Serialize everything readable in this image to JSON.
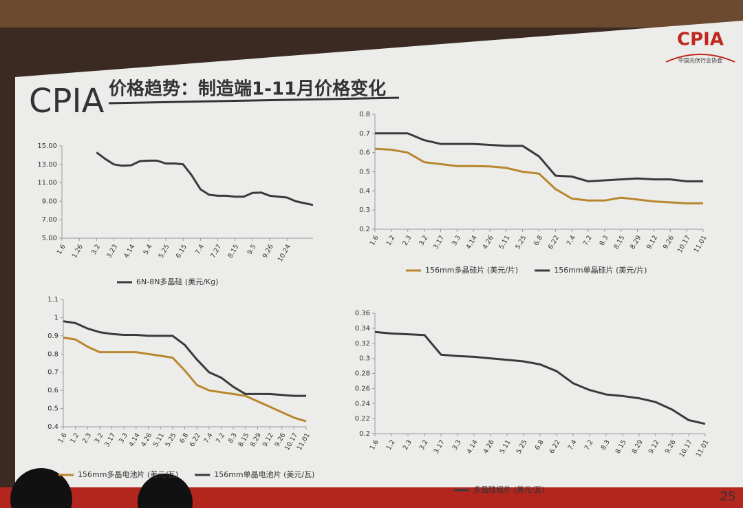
{
  "header": {
    "logo": "CPIA",
    "org": "中国光伏行业协会",
    "brand": "CPIA",
    "title": "价格趋势：制造端1-11月价格变化",
    "page": "25"
  },
  "chart_data": [
    {
      "type": "line",
      "categories": [
        "1.6",
        null,
        "1.26",
        null,
        "3.2",
        null,
        "3.23",
        null,
        "4.14",
        null,
        "5.4",
        null,
        "5.25",
        null,
        "6.15",
        null,
        "7.4",
        null,
        "7.27",
        null,
        "8.15",
        null,
        "9.5",
        null,
        "9.26",
        null,
        "10.24",
        null,
        null,
        null
      ],
      "series": [
        {
          "name": "6N-8N多晶硅 (美元/Kg)",
          "color": "#3a3a3a",
          "values": [
            null,
            null,
            null,
            null,
            14.3,
            13.6,
            13.0,
            12.85,
            12.9,
            13.35,
            13.4,
            13.4,
            13.1,
            13.1,
            13.0,
            11.8,
            10.3,
            9.7,
            9.6,
            9.6,
            9.5,
            9.5,
            9.9,
            9.95,
            9.6,
            9.5,
            9.4,
            9.0,
            8.8,
            8.6
          ]
        }
      ],
      "ylim": [
        5,
        15
      ],
      "yticks": [
        {
          "value": 5,
          "label": "5.00"
        },
        {
          "value": 7,
          "label": "7.00"
        },
        {
          "value": 9,
          "label": "9.00"
        },
        {
          "value": 11,
          "label": "11.00"
        },
        {
          "value": 13,
          "label": "13.00"
        },
        {
          "value": 15,
          "label": "15.00"
        }
      ]
    },
    {
      "type": "line",
      "categories": [
        "1.6",
        "1.2",
        "2.3",
        "3.2",
        "3.17",
        "3.3",
        "4.14",
        "4.26",
        "5.11",
        "5.25",
        "6.8",
        "6.22",
        "7.4",
        "7.2",
        "8.3",
        "8.15",
        "8.29",
        "9.12",
        "9.26",
        "10.17",
        "11.01"
      ],
      "series": [
        {
          "name": "156mm多晶硅片 (美元/片)",
          "color": "#b8862e",
          "values": [
            0.62,
            0.615,
            0.6,
            0.55,
            0.54,
            0.53,
            0.53,
            0.528,
            0.52,
            0.5,
            0.49,
            0.41,
            0.36,
            0.35,
            0.35,
            0.365,
            0.355,
            0.345,
            0.34,
            0.335,
            0.335
          ]
        },
        {
          "name": "156mm单晶硅片 (美元/片)",
          "color": "#3a3a3a",
          "values": [
            0.7,
            0.7,
            0.7,
            0.665,
            0.645,
            0.645,
            0.645,
            0.64,
            0.635,
            0.635,
            0.58,
            0.48,
            0.475,
            0.45,
            0.455,
            0.46,
            0.465,
            0.46,
            0.46,
            0.45,
            0.45
          ]
        }
      ],
      "ylim": [
        0.2,
        0.8
      ],
      "yticks": [
        0.2,
        0.3,
        0.4,
        0.5,
        0.6,
        0.7,
        0.8
      ]
    },
    {
      "type": "line",
      "categories": [
        "1.6",
        "1.2",
        "2.3",
        "3.2",
        "3.17",
        "3.3",
        "4.14",
        "4.26",
        "5.11",
        "5.25",
        "6.8",
        "6.22",
        "7.4",
        "7.2",
        "8.3",
        "8.15",
        "8.29",
        "9.12",
        "9.26",
        "10.17",
        "11.01"
      ],
      "series": [
        {
          "name": "156mm多晶电池片 (美元/瓦)",
          "color": "#b8862e",
          "values": [
            0.89,
            0.88,
            0.84,
            0.81,
            0.81,
            0.81,
            0.81,
            0.8,
            0.79,
            0.78,
            0.71,
            0.63,
            0.6,
            0.59,
            0.58,
            0.57,
            0.54,
            0.51,
            0.48,
            0.45,
            0.43
          ]
        },
        {
          "name": "156mm单晶电池片 (美元/瓦)",
          "color": "#3a3a3a",
          "values": [
            0.98,
            0.97,
            0.94,
            0.92,
            0.91,
            0.905,
            0.905,
            0.9,
            0.9,
            0.9,
            0.85,
            0.77,
            0.7,
            0.67,
            0.62,
            0.58,
            0.58,
            0.58,
            0.575,
            0.57,
            0.57
          ]
        }
      ],
      "ylim": [
        0.4,
        1.1
      ],
      "yticks": [
        0.4,
        0.5,
        0.6,
        0.7,
        0.8,
        0.9,
        1,
        1.1
      ]
    },
    {
      "type": "line",
      "categories": [
        "1.6",
        "1.2",
        "2.3",
        "3.2",
        "3.17",
        "3.3",
        "4.14",
        "4.26",
        "5.11",
        "5.25",
        "6.8",
        "6.22",
        "7.4",
        "7.2",
        "8.3",
        "8.15",
        "8.29",
        "9.12",
        "9.26",
        "10.17",
        "11.01"
      ],
      "series": [
        {
          "name": "多晶硅组件 (美元/瓦)",
          "color": "#3a3a3a",
          "values": [
            0.335,
            0.333,
            0.332,
            0.331,
            0.305,
            0.303,
            0.302,
            0.3,
            0.298,
            0.296,
            0.292,
            0.283,
            0.267,
            0.258,
            0.252,
            0.25,
            0.247,
            0.242,
            0.232,
            0.218,
            0.213
          ]
        }
      ],
      "ylim": [
        0.2,
        0.36
      ],
      "yticks": [
        0.2,
        0.22,
        0.24,
        0.26,
        0.28,
        0.3,
        0.32,
        0.34,
        0.36
      ]
    }
  ]
}
